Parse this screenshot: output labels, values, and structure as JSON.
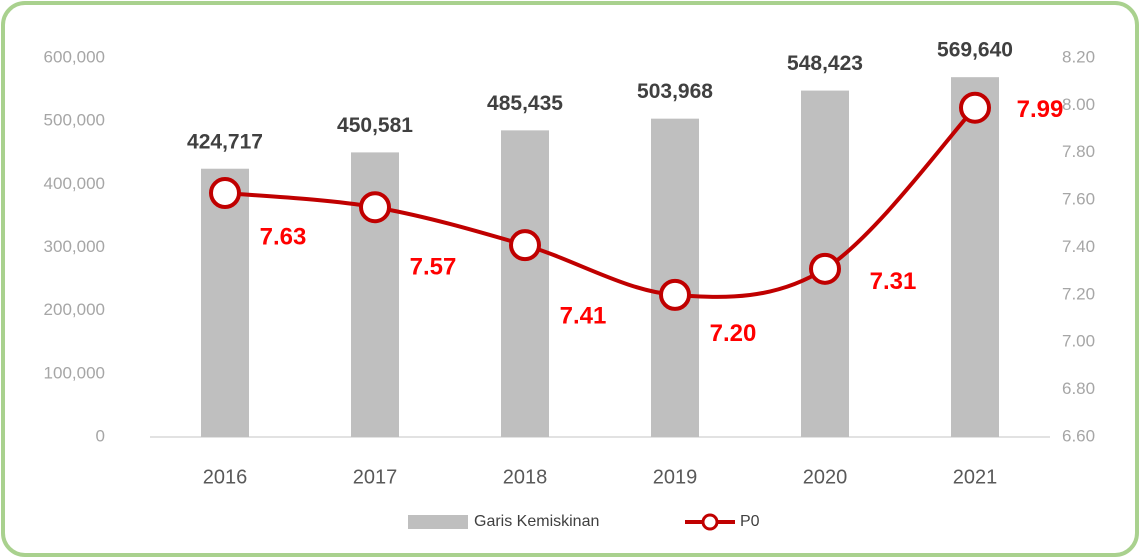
{
  "chart_data": {
    "type": "bar_line",
    "categories": [
      "2016",
      "2017",
      "2018",
      "2019",
      "2020",
      "2021"
    ],
    "series": [
      {
        "name": "Garis Kemiskinan",
        "type": "bar",
        "color": "#bfbfbf",
        "values": [
          424717,
          450581,
          485435,
          503968,
          548423,
          569640
        ],
        "value_labels": [
          "424,717",
          "450,581",
          "485,435",
          "503,968",
          "548,423",
          "569,640"
        ]
      },
      {
        "name": "P0",
        "type": "line",
        "axis": "y2",
        "color": "#c00000",
        "values": [
          7.63,
          7.57,
          7.41,
          7.2,
          7.31,
          7.99
        ],
        "value_labels": [
          "7.63",
          "7.57",
          "7.41",
          "7.20",
          "7.31",
          "7.99"
        ]
      }
    ],
    "ylim": [
      0,
      600000
    ],
    "yticks": [
      0,
      {
        "value": 100000,
        "label": "100,000"
      },
      {
        "value": 200000,
        "label": "200,000"
      },
      {
        "value": 300000,
        "label": "300,000"
      },
      {
        "value": 400000,
        "label": "400,000"
      },
      {
        "value": 500000,
        "label": "500,000"
      },
      {
        "value": 600000,
        "label": "600,000"
      }
    ],
    "y2lim": [
      6.6,
      8.2
    ],
    "y2ticks": [
      {
        "value": 6.6,
        "label": "6.60"
      },
      {
        "value": 6.8,
        "label": "6.80"
      },
      {
        "value": 7.0,
        "label": "7.00"
      },
      {
        "value": 7.2,
        "label": "7.20"
      },
      {
        "value": 7.4,
        "label": "7.40"
      },
      {
        "value": 7.6,
        "label": "7.60"
      },
      {
        "value": 7.8,
        "label": "7.80"
      },
      {
        "value": 8.0,
        "label": "8.00"
      },
      {
        "value": 8.2,
        "label": "8.20"
      }
    ],
    "grid": false,
    "legend": "bottom"
  }
}
